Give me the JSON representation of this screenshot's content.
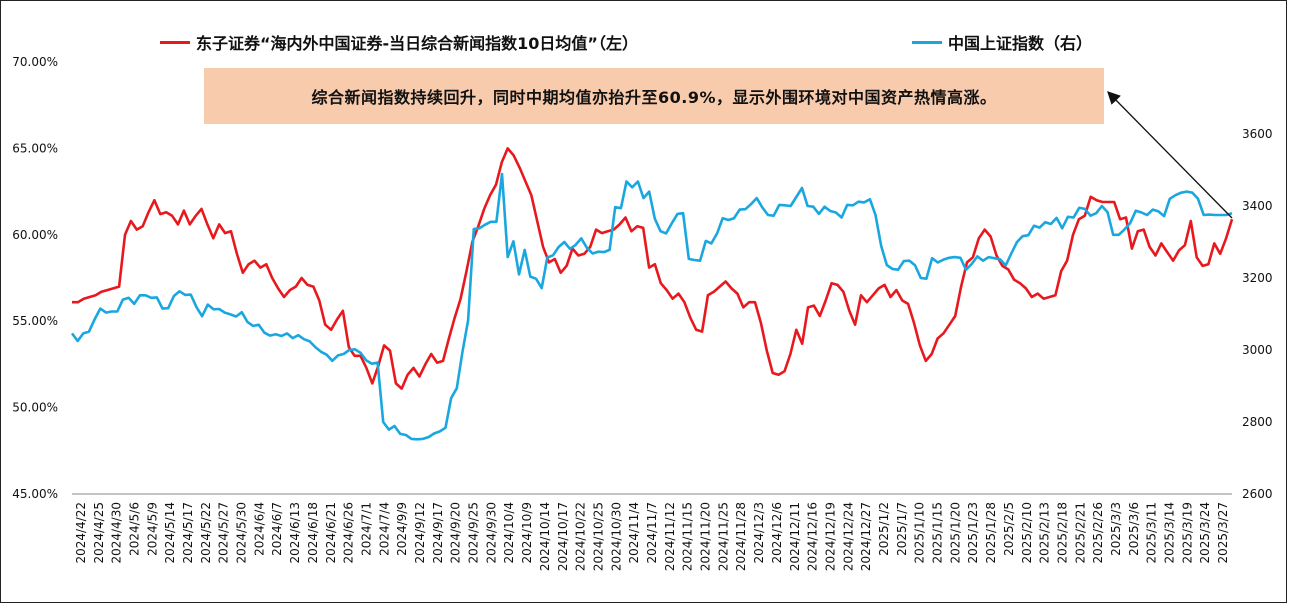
{
  "chart_data": {
    "type": "line",
    "title": "",
    "series": [
      {
        "name": "东子证券“海内外中国证券-当日综合新闻指数10日均值”（左）",
        "axis": "left",
        "unit": "%",
        "color": "#e8191e",
        "values": [
          56.1,
          56.1,
          56.3,
          56.4,
          56.5,
          56.7,
          56.8,
          56.9,
          57.0,
          60.0,
          60.8,
          60.3,
          60.5,
          61.3,
          62.0,
          61.2,
          61.3,
          61.1,
          60.6,
          61.4,
          60.6,
          61.1,
          61.5,
          60.6,
          59.8,
          60.6,
          60.1,
          60.2,
          58.9,
          57.8,
          58.3,
          58.5,
          58.1,
          58.3,
          57.5,
          56.9,
          56.4,
          56.8,
          57.0,
          57.5,
          57.1,
          57.0,
          56.2,
          54.8,
          54.5,
          55.1,
          55.6,
          53.5,
          53.0,
          53.0,
          52.3,
          51.4,
          52.4,
          53.6,
          53.3,
          51.4,
          51.1,
          51.9,
          52.3,
          51.8,
          52.5,
          53.1,
          52.6,
          52.7,
          54.0,
          55.2,
          56.3,
          57.9,
          59.6,
          60.5,
          61.5,
          62.3,
          62.9,
          64.2,
          65.0,
          64.6,
          63.9,
          63.1,
          62.3,
          60.8,
          59.3,
          58.4,
          58.6,
          57.8,
          58.2,
          59.2,
          58.8,
          58.9,
          59.3,
          60.3,
          60.1,
          60.2,
          60.3,
          60.6,
          61.0,
          60.2,
          60.5,
          60.4,
          58.1,
          58.3,
          57.2,
          56.8,
          56.3,
          56.6,
          56.1,
          55.2,
          54.5,
          54.4,
          56.5,
          56.7,
          57.0,
          57.3,
          56.9,
          56.6,
          55.8,
          56.1,
          56.1,
          54.9,
          53.3,
          52.0,
          51.9,
          52.1,
          53.1,
          54.5,
          53.7,
          55.8,
          55.9,
          55.3,
          56.2,
          57.2,
          57.1,
          56.7,
          55.6,
          54.8,
          56.5,
          56.1,
          56.5,
          56.9,
          57.1,
          56.4,
          56.8,
          56.2,
          56.0,
          54.9,
          53.6,
          52.7,
          53.1,
          54.0,
          54.3,
          54.8,
          55.3,
          57.0,
          58.4,
          58.7,
          59.8,
          60.3,
          59.9,
          58.8,
          58.2,
          58.0,
          57.4,
          57.2,
          56.9,
          56.4,
          56.6,
          56.3,
          56.4,
          56.5,
          57.9,
          58.5,
          60.0,
          60.9,
          61.1,
          62.2,
          62.0,
          61.9,
          61.9,
          61.9,
          60.9,
          61.0,
          59.2,
          60.2,
          60.3,
          59.3,
          58.8,
          59.5,
          59.0,
          58.5,
          59.1,
          59.4,
          60.8,
          58.7,
          58.2,
          58.3,
          59.5,
          58.9,
          59.8,
          60.9
        ]
      },
      {
        "name": "中国上证指数（右）",
        "axis": "right",
        "color": "#1aa7e0",
        "values": [
          3046,
          3025,
          3046,
          3051,
          3085,
          3115,
          3104,
          3107,
          3107,
          3140,
          3145,
          3128,
          3152,
          3152,
          3145,
          3146,
          3115,
          3116,
          3150,
          3163,
          3153,
          3154,
          3119,
          3094,
          3126,
          3113,
          3114,
          3104,
          3099,
          3093,
          3105,
          3078,
          3067,
          3070,
          3048,
          3040,
          3044,
          3039,
          3046,
          3033,
          3041,
          3030,
          3024,
          3008,
          2995,
          2987,
          2970,
          2985,
          2989,
          3000,
          3002,
          2992,
          2971,
          2962,
          2965,
          2800,
          2779,
          2789,
          2767,
          2764,
          2753,
          2752,
          2753,
          2758,
          2768,
          2774,
          2784,
          2866,
          2894,
          2994,
          3082,
          3336,
          3338,
          3348,
          3356,
          3356,
          3489,
          3258,
          3302,
          3210,
          3278,
          3204,
          3198,
          3172,
          3257,
          3263,
          3286,
          3300,
          3281,
          3292,
          3310,
          3284,
          3268,
          3273,
          3272,
          3278,
          3397,
          3394,
          3468,
          3452,
          3468,
          3422,
          3440,
          3365,
          3330,
          3324,
          3352,
          3378,
          3380,
          3253,
          3250,
          3248,
          3303,
          3296,
          3324,
          3366,
          3361,
          3366,
          3390,
          3391,
          3405,
          3422,
          3396,
          3375,
          3373,
          3403,
          3402,
          3400,
          3425,
          3450,
          3400,
          3398,
          3378,
          3398,
          3386,
          3382,
          3368,
          3403,
          3402,
          3412,
          3410,
          3419,
          3375,
          3289,
          3236,
          3225,
          3223,
          3247,
          3248,
          3235,
          3200,
          3198,
          3255,
          3243,
          3251,
          3256,
          3258,
          3256,
          3223,
          3239,
          3260,
          3248,
          3258,
          3255,
          3252,
          3235,
          3268,
          3300,
          3316,
          3319,
          3345,
          3340,
          3355,
          3350,
          3367,
          3338,
          3370,
          3368,
          3395,
          3392,
          3373,
          3380,
          3400,
          3383,
          3320,
          3320,
          3335,
          3352,
          3387,
          3382,
          3375,
          3390,
          3385,
          3372,
          3420,
          3430,
          3437,
          3440,
          3437,
          3420,
          3375,
          3376,
          3375,
          3375,
          3375,
          3380
        ]
      }
    ],
    "y_left": {
      "min": 45,
      "max": 70,
      "ticks": [
        "45.00%",
        "50.00%",
        "55.00%",
        "60.00%",
        "65.00%",
        "70.00%"
      ]
    },
    "y_right": {
      "min": 2600,
      "max": 3800,
      "ticks": [
        "2600",
        "2800",
        "3000",
        "3200",
        "3400",
        "3600"
      ]
    },
    "x_ticks": [
      "2024/4/22",
      "2024/4/25",
      "2024/4/30",
      "2024/5/6",
      "2024/5/9",
      "2024/5/14",
      "2024/5/17",
      "2024/5/22",
      "2024/5/27",
      "2024/5/30",
      "2024/6/4",
      "2024/6/7",
      "2024/6/13",
      "2024/6/18",
      "2024/6/21",
      "2024/6/26",
      "2024/7/1",
      "2024/7/4",
      "2024/9/9",
      "2024/9/12",
      "2024/9/17",
      "2024/9/20",
      "2024/9/25",
      "2024/9/30",
      "2024/10/4",
      "2024/10/9",
      "2024/10/14",
      "2024/10/17",
      "2024/10/22",
      "2024/10/25",
      "2024/10/30",
      "2024/11/4",
      "2024/11/7",
      "2024/11/12",
      "2024/11/15",
      "2024/11/20",
      "2024/11/25",
      "2024/11/28",
      "2024/12/3",
      "2024/12/6",
      "2024/12/11",
      "2024/12/16",
      "2024/12/19",
      "2024/12/24",
      "2024/12/27",
      "2025/1/2",
      "2025/1/7",
      "2025/1/10",
      "2025/1/15",
      "2025/1/20",
      "2025/1/23",
      "2025/1/28",
      "2025/2/5",
      "2025/2/10",
      "2025/2/13",
      "2025/2/18",
      "2025/2/21",
      "2025/2/26",
      "2025/3/3",
      "2025/3/6",
      "2025/3/11",
      "2025/3/14",
      "2025/3/19",
      "2025/3/24",
      "2025/3/27"
    ],
    "annotation": "综合新闻指数持续回升，同时中期均值亦抬升至60.9%，显示外围环境对中国资产热情高涨。",
    "grid": false,
    "legend_position": "top"
  }
}
